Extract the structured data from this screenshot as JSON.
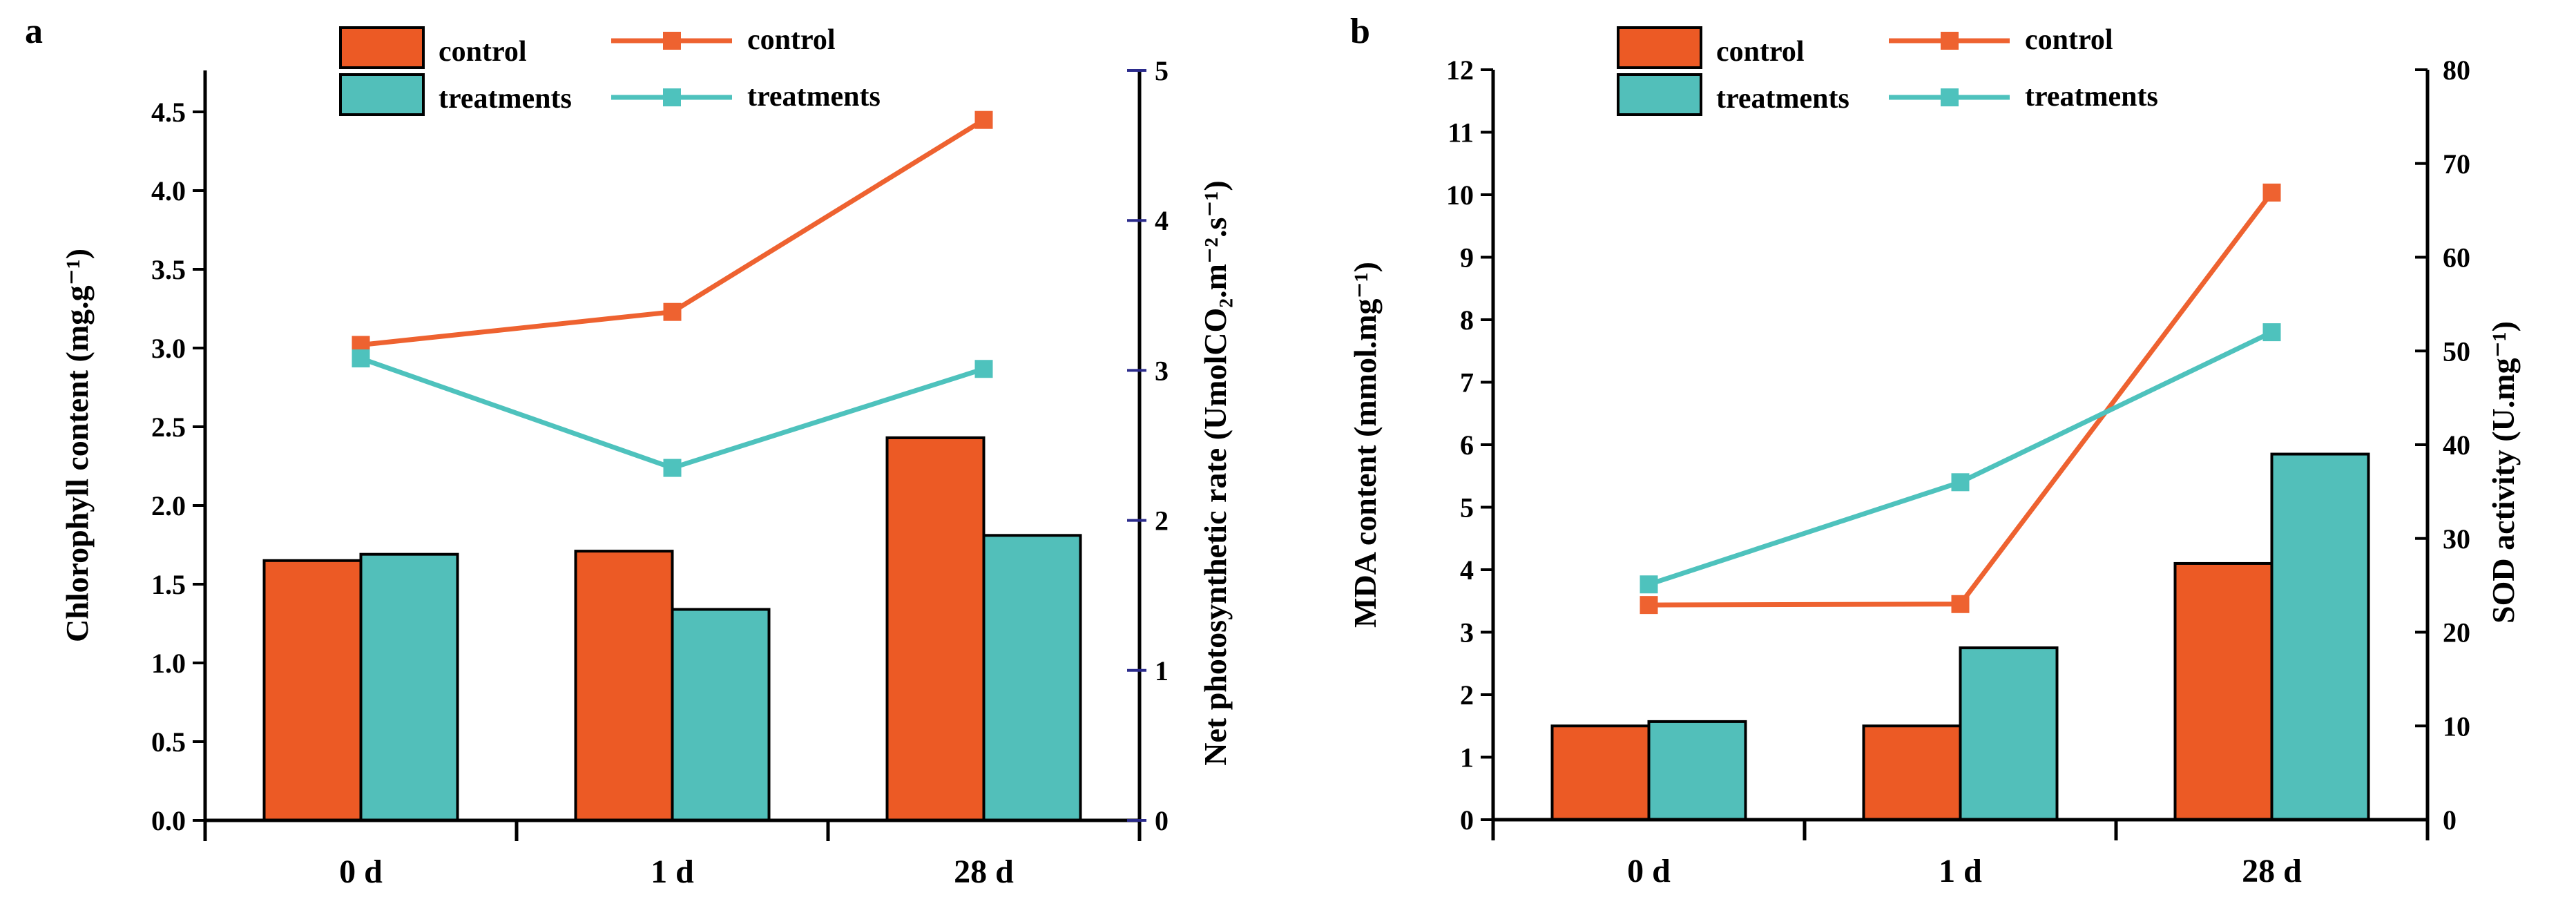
{
  "colors": {
    "control": "#EC5A25",
    "treatments": "#52BFBA",
    "control_line": "#EE6230",
    "treatments_line": "#4EC2BD",
    "right_tick_a": "#2B2B8C"
  },
  "chart_data": [
    {
      "panel_label": "a",
      "type": "bar+line",
      "categories": [
        "0 d",
        "1 d",
        "28 d"
      ],
      "bar_axis": {
        "label": "Chlorophyll content  (mg.g⁻¹)",
        "ylim": [
          0,
          4.75
        ],
        "ticks": [
          "0.0",
          "0.5",
          "1.0",
          "1.5",
          "2.0",
          "2.5",
          "3.0",
          "3.5",
          "4.0",
          "4.5"
        ],
        "tick_step": 0.5
      },
      "line_axis": {
        "label": "Net photosynthetic rate (UmolCO₂.m⁻².s⁻¹)",
        "ylim": [
          0,
          5
        ],
        "ticks": [
          "0",
          "1",
          "2",
          "3",
          "4",
          "5"
        ],
        "tick_step": 1
      },
      "bar_series": [
        {
          "name": "control",
          "values": [
            1.65,
            1.71,
            2.43
          ]
        },
        {
          "name": "treatments",
          "values": [
            1.69,
            1.34,
            1.81
          ]
        }
      ],
      "line_series": [
        {
          "name": "control",
          "values": [
            3.17,
            3.39,
            4.67
          ]
        },
        {
          "name": "treatments",
          "values": [
            3.08,
            2.35,
            3.01
          ]
        }
      ]
    },
    {
      "panel_label": "b",
      "type": "bar+line",
      "categories": [
        "0 d",
        "1 d",
        "28 d"
      ],
      "bar_axis": {
        "label": "MDA content  (mmol.mg⁻¹)",
        "ylim": [
          0,
          12
        ],
        "ticks": [
          "0",
          "1",
          "2",
          "3",
          "4",
          "5",
          "6",
          "7",
          "8",
          "9",
          "10",
          "11",
          "12"
        ],
        "tick_step": 1
      },
      "line_axis": {
        "label": "SOD activity (U.mg⁻¹)",
        "ylim": [
          0,
          80
        ],
        "ticks": [
          "0",
          "10",
          "20",
          "30",
          "40",
          "50",
          "60",
          "70",
          "80"
        ],
        "tick_step": 10
      },
      "bar_series": [
        {
          "name": "control",
          "values": [
            1.5,
            1.5,
            4.1
          ]
        },
        {
          "name": "treatments",
          "values": [
            1.57,
            2.75,
            5.85
          ]
        }
      ],
      "line_series": [
        {
          "name": "control",
          "values": [
            22.9,
            23.0,
            66.9
          ]
        },
        {
          "name": "treatments",
          "values": [
            25.1,
            36.0,
            52.0
          ]
        }
      ]
    }
  ]
}
